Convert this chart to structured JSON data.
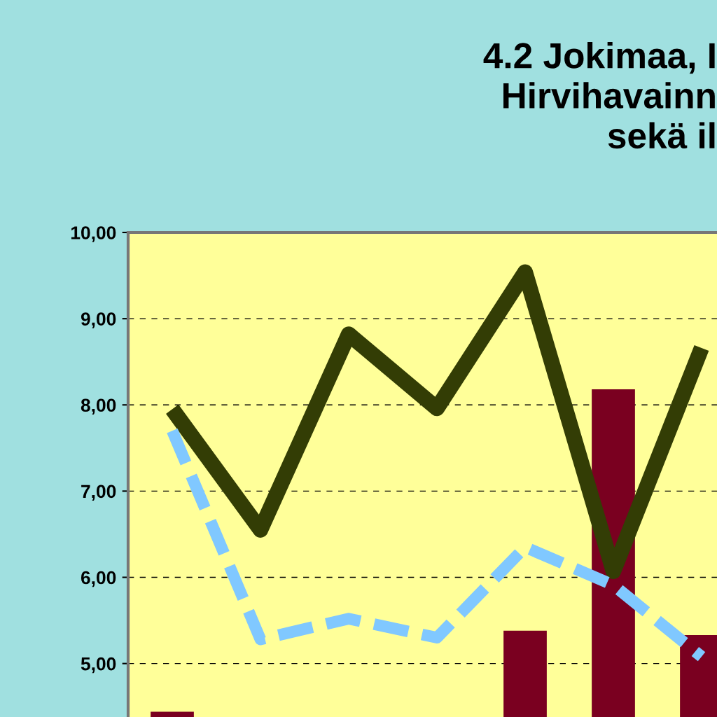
{
  "chart_data": {
    "type": "bar",
    "title": "4.2 Jokimaa, I\nHirvihavainn\nsekä il",
    "categories": [
      null,
      null,
      null,
      null,
      null,
      null,
      null
    ],
    "series": [
      {
        "color": "#7a0020",
        "values": [
          4.44,
          null,
          null,
          null,
          5.38,
          8.18,
          5.33
        ]
      },
      {
        "type": "line",
        "color": "#333d05",
        "line_style": "solid",
        "values": [
          7.95,
          6.55,
          8.82,
          7.96,
          9.54,
          6.07,
          8.66
        ]
      },
      {
        "type": "line",
        "color": "#80c8ff",
        "line_style": "dashed",
        "values": [
          7.7,
          5.28,
          5.52,
          5.3,
          6.35,
          5.91,
          5.08
        ]
      }
    ],
    "ylim": [
      4.38,
      10
    ],
    "yticks": [
      {
        "value": 5,
        "label": "5,00"
      },
      {
        "value": 6,
        "label": "6,00"
      },
      {
        "value": 7,
        "label": "7,00"
      },
      {
        "value": 8,
        "label": "8,00"
      },
      {
        "value": 9,
        "label": "9,00"
      },
      {
        "value": 10,
        "label": "10,00"
      }
    ],
    "tick_labels": "y",
    "grid": "y"
  }
}
